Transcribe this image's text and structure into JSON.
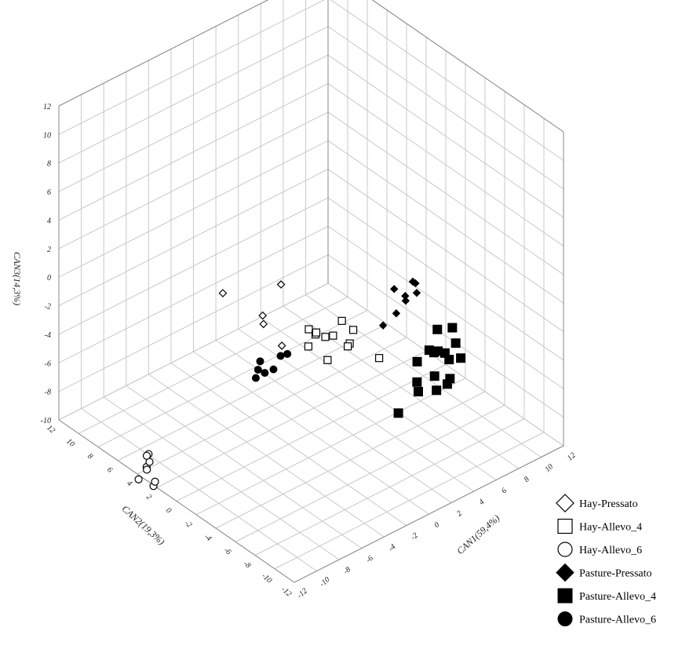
{
  "chart_data": {
    "type": "scatter",
    "subtype": "3d",
    "axes": {
      "x": {
        "label": "CAN1(59,4%)",
        "range": [
          -12,
          12
        ],
        "ticks": [
          -12,
          -10,
          -8,
          -6,
          -4,
          -2,
          0,
          2,
          4,
          6,
          8,
          10,
          12
        ],
        "tick_labels": [
          "-12",
          "-10",
          "-8",
          "-6",
          "-4",
          "-2",
          "0",
          "2",
          "4",
          "6",
          "8",
          "10",
          "12"
        ]
      },
      "y": {
        "label": "CAN2(19,3%)",
        "range": [
          -12,
          12
        ],
        "ticks": [
          -12,
          -10,
          -8,
          -6,
          -4,
          -2,
          0,
          2,
          4,
          6,
          8,
          10,
          12
        ],
        "tick_labels": [
          "-12",
          "-10",
          "-8",
          "-6",
          "-4",
          "-2",
          "0",
          "2",
          "4",
          "6",
          "8",
          "10",
          "12"
        ]
      },
      "z": {
        "label": "CAN3(14,3%)",
        "range": [
          -10,
          12
        ],
        "ticks": [
          -10,
          -8,
          -6,
          -4,
          -2,
          0,
          2,
          4,
          6,
          8,
          10,
          12
        ],
        "tick_labels": [
          "-10",
          "-8",
          "-6",
          "-4",
          "-2",
          "0",
          "2",
          "4",
          "6",
          "8",
          "10",
          "12"
        ]
      }
    },
    "grid": true,
    "legend_position": "bottom-right",
    "series": [
      {
        "name": "Hay-Pressato",
        "marker": "diamond",
        "filled": false,
        "points": [
          [
            -10.5,
            -3.0,
            5.4
          ],
          [
            -7.5,
            -5.5,
            6.0
          ],
          [
            -8.8,
            -5.2,
            3.6
          ],
          [
            -8.0,
            -4.2,
            3.4
          ],
          [
            -8.3,
            -6.5,
            2.5
          ]
        ]
      },
      {
        "name": "Hay-Allevo_4",
        "marker": "square",
        "filled": false,
        "points": [
          [
            -0.5,
            -4.5,
            -1.4
          ],
          [
            -1.8,
            -3.5,
            -0.9
          ],
          [
            -1.2,
            -3.6,
            -1.0
          ],
          [
            -0.5,
            -3.7,
            -0.2
          ],
          [
            -0.8,
            -5.2,
            0.0
          ],
          [
            -2.4,
            -2.5,
            -0.6
          ],
          [
            -1.8,
            -2.5,
            -1.2
          ],
          [
            -1.3,
            -2.0,
            -1.5
          ],
          [
            -0.5,
            -4.3,
            -1.7
          ],
          [
            -2.0,
            -2.0,
            -2.2
          ],
          [
            -0.5,
            -7.5,
            -1.0
          ],
          [
            -1.6,
            -3.5,
            -2.6
          ]
        ]
      },
      {
        "name": "Hay-Allevo_6",
        "marker": "circle",
        "filled": false,
        "points": [
          [
            -11.0,
            4.0,
            -9.0
          ],
          [
            -11.0,
            4.2,
            -10.0
          ],
          [
            -11.5,
            3.6,
            -9.7
          ],
          [
            -11.0,
            3.9,
            -9.5
          ],
          [
            -10.9,
            4.3,
            -9.3
          ],
          [
            -11.8,
            4.1,
            -10.5
          ],
          [
            -11.0,
            3.5,
            -11.0
          ],
          [
            -10.6,
            3.8,
            -11.0
          ]
        ]
      },
      {
        "name": "Pasture-Pressato",
        "marker": "diamond",
        "filled": true,
        "points": [
          [
            1.8,
            -6.4,
            2.4
          ],
          [
            3.2,
            -6.7,
            2.5
          ],
          [
            3.0,
            -7.2,
            2.7
          ],
          [
            3.2,
            -7.1,
            1.9
          ],
          [
            2.7,
            -6.5,
            1.6
          ],
          [
            3.0,
            -6.2,
            1.0
          ],
          [
            1.9,
            -6.5,
            0.7
          ],
          [
            1.6,
            -5.5,
            -0.5
          ]
        ]
      },
      {
        "name": "Pasture-Allevo_4",
        "marker": "square",
        "filled": true,
        "points": [
          [
            6.9,
            -6.5,
            -2.3
          ],
          [
            6.0,
            -6.0,
            -2.3
          ],
          [
            5.8,
            -7.0,
            -3.4
          ],
          [
            5.1,
            -6.2,
            -3.3
          ],
          [
            5.8,
            -6.3,
            -3.6
          ],
          [
            5.7,
            -6.0,
            -3.8
          ],
          [
            7.2,
            -6.5,
            -3.5
          ],
          [
            7.3,
            -6.9,
            -4.4
          ],
          [
            6.7,
            -6.4,
            -4.5
          ],
          [
            6.6,
            -6.6,
            -5.7
          ],
          [
            6.1,
            -5.6,
            -5.8
          ],
          [
            6.8,
            -6.1,
            -6.4
          ],
          [
            6.1,
            -5.8,
            -6.7
          ],
          [
            4.9,
            -5.2,
            -4.5
          ],
          [
            5.5,
            -4.5,
            -6.5
          ],
          [
            5.7,
            -4.4,
            -7.3
          ],
          [
            3.4,
            -5.0,
            -7.6
          ]
        ]
      },
      {
        "name": "Pasture-Allevo_6",
        "marker": "circle",
        "filled": true,
        "points": [
          [
            -3.0,
            -1.0,
            -2.8
          ],
          [
            -3.6,
            -1.0,
            -2.7
          ],
          [
            -4.2,
            0.4,
            -3.5
          ],
          [
            -3.8,
            -0.5,
            -3.8
          ],
          [
            -4.3,
            0.5,
            -4.1
          ],
          [
            -4.4,
            -0.3,
            -3.9
          ],
          [
            -4.5,
            0.5,
            -4.6
          ]
        ]
      }
    ]
  },
  "legend": [
    {
      "label": "Hay-Pressato",
      "shape": "diamond",
      "filled": false
    },
    {
      "label": "Hay-Allevo_4",
      "shape": "square",
      "filled": false
    },
    {
      "label": "Hay-Allevo_6",
      "shape": "circle",
      "filled": false
    },
    {
      "label": "Pasture-Pressato",
      "shape": "diamond",
      "filled": true
    },
    {
      "label": "Pasture-Allevo_4",
      "shape": "square",
      "filled": true
    },
    {
      "label": "Pasture-Allevo_6",
      "shape": "circle",
      "filled": true
    }
  ],
  "colors": {
    "marker": "#000000",
    "grid": "#c8c8c8",
    "frame": "#888888"
  }
}
